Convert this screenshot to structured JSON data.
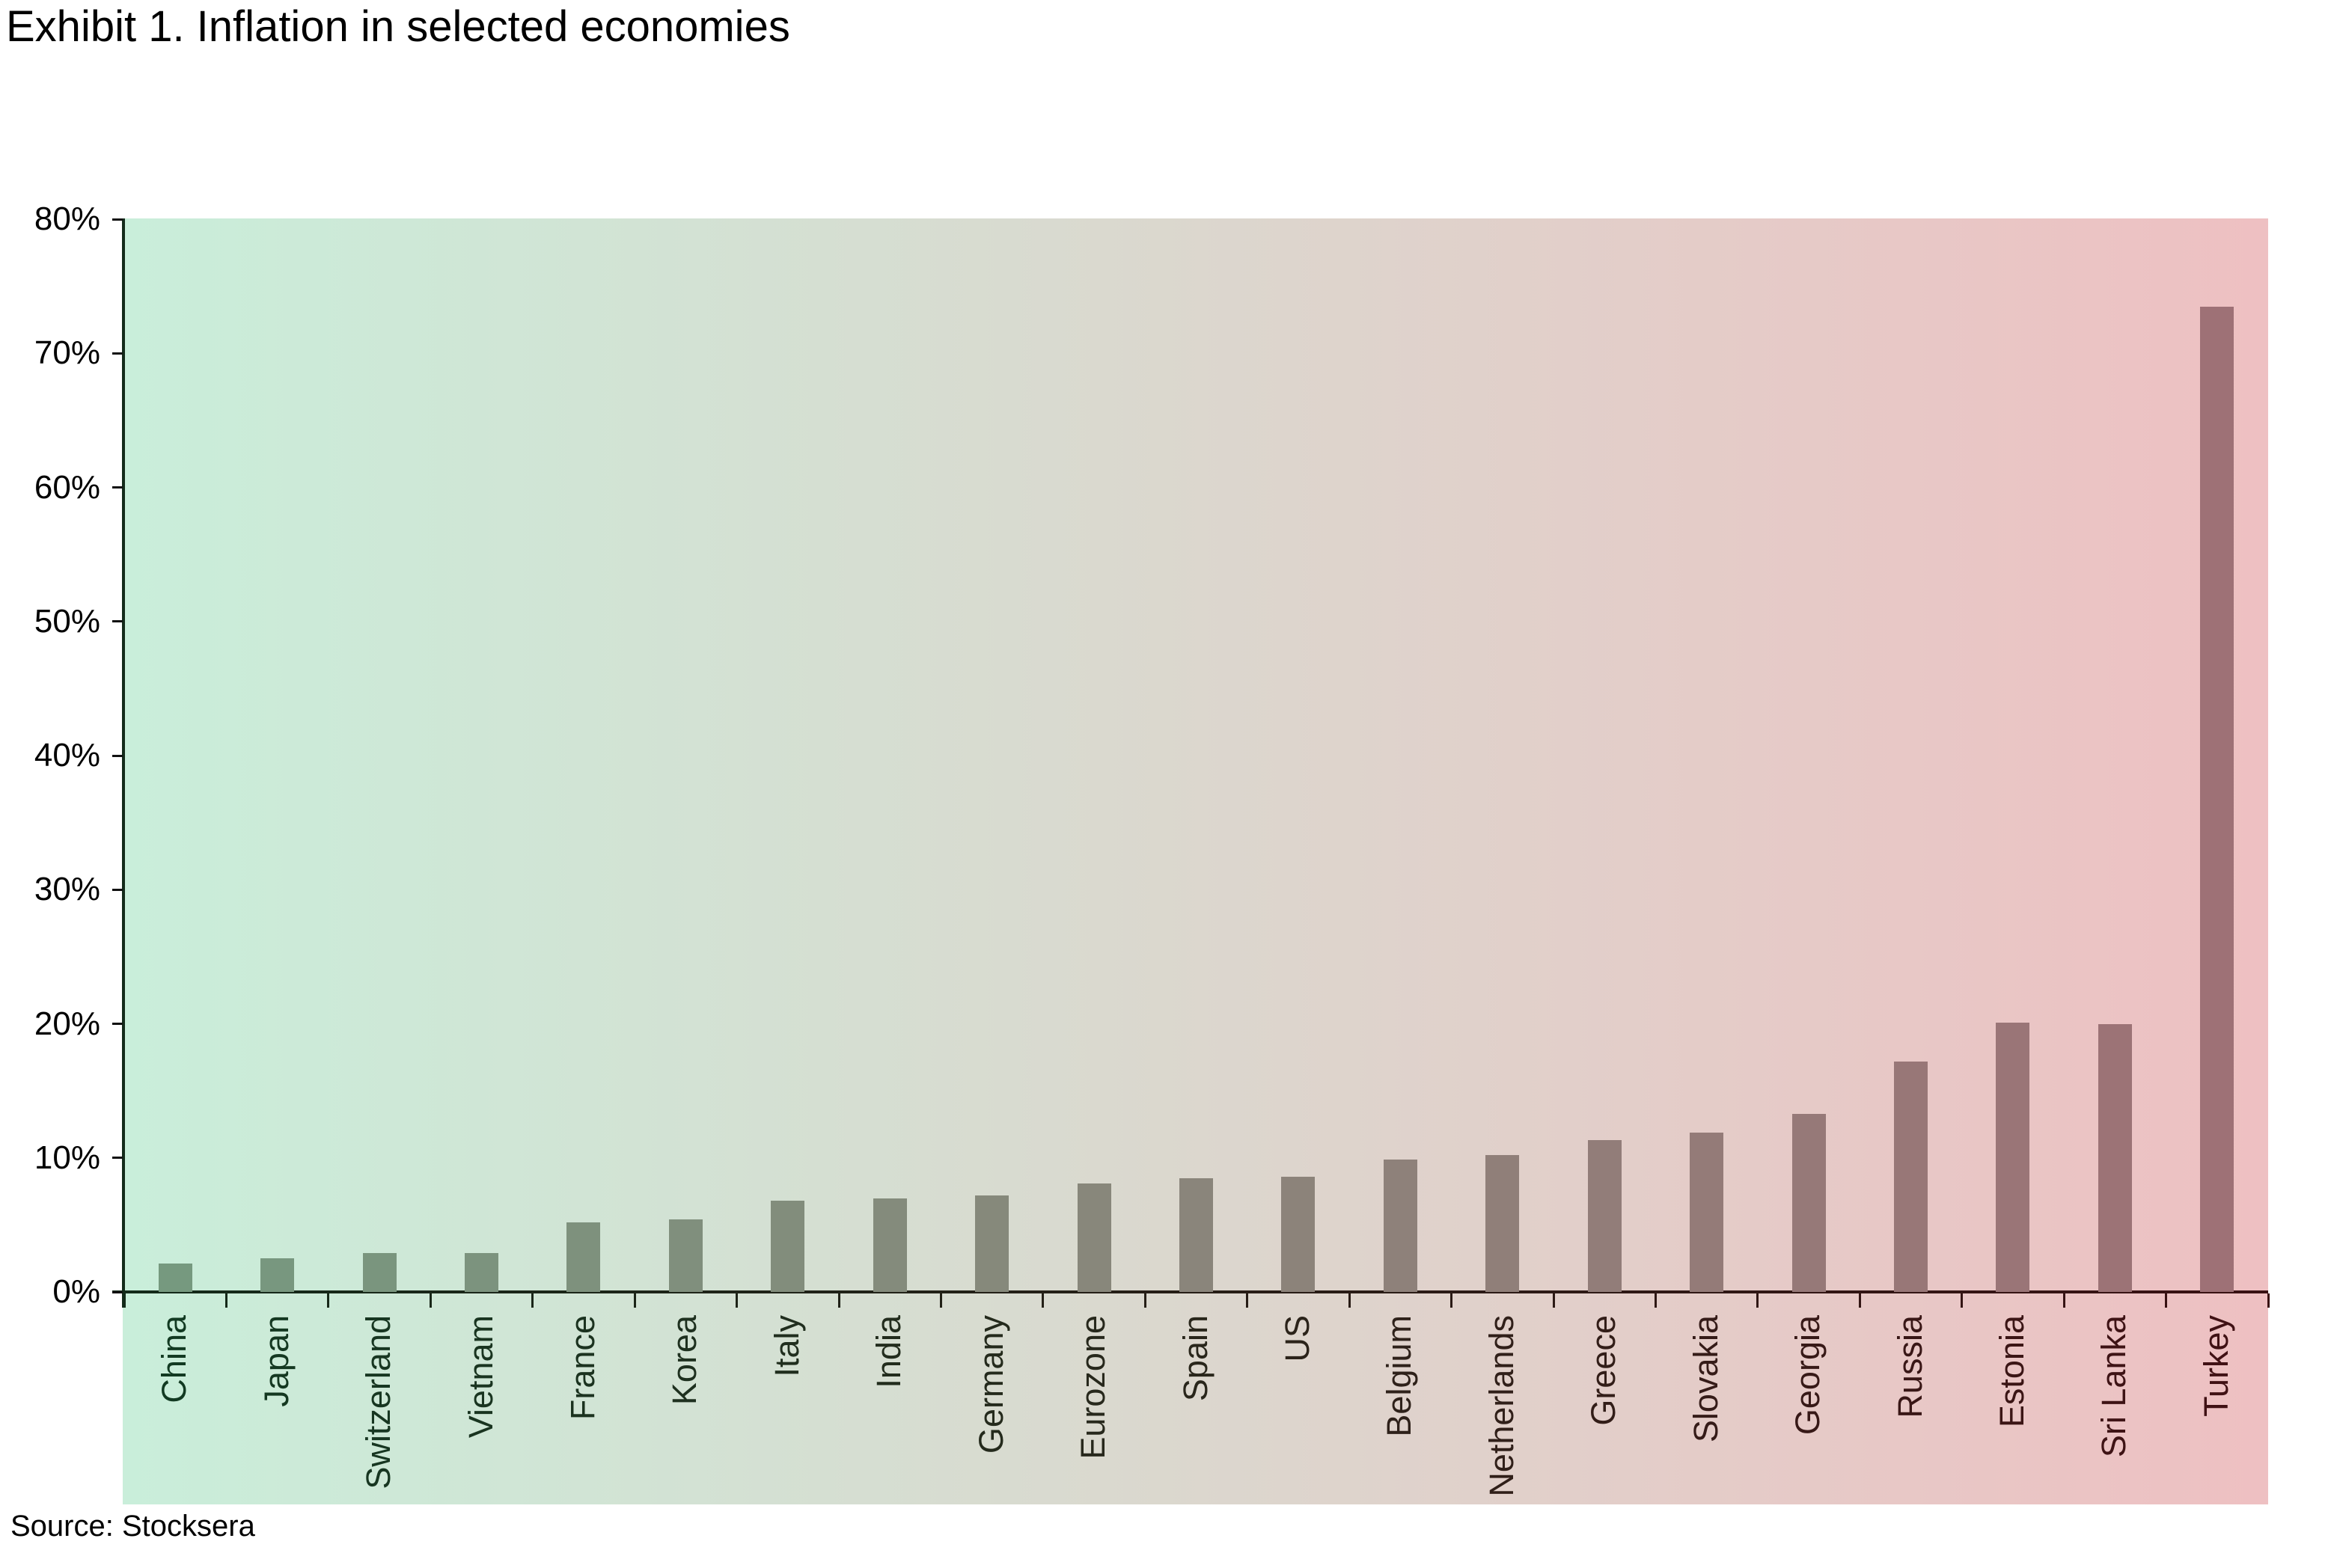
{
  "title": "Exhibit 1. Inflation in selected economies",
  "source": "Source: Stocksera",
  "y_axis": {
    "tick_labels": [
      "80%",
      "70%",
      "60%",
      "50%",
      "40%",
      "30%",
      "20%",
      "10%",
      "0%"
    ],
    "tick_values": [
      80,
      70,
      60,
      50,
      40,
      30,
      20,
      10,
      0
    ]
  },
  "chart_data": {
    "type": "bar",
    "title": "Exhibit 1. Inflation in selected economies",
    "xlabel": "",
    "ylabel": "",
    "ylim": [
      0,
      80
    ],
    "grid": false,
    "legend": "none",
    "value_suffix": "%",
    "categories": [
      "China",
      "Japan",
      "Switzerland",
      "Vietnam",
      "France",
      "Korea",
      "Italy",
      "India",
      "Germany",
      "Eurozone",
      "Spain",
      "US",
      "Belgium",
      "Netherlands",
      "Greece",
      "Slovakia",
      "Georgia",
      "Russia",
      "Estonia",
      "Sri Lanka",
      "Turkey"
    ],
    "values": [
      2.1,
      2.5,
      2.9,
      2.9,
      5.2,
      5.4,
      6.8,
      7.0,
      7.2,
      8.1,
      8.5,
      8.6,
      9.9,
      10.2,
      11.3,
      11.9,
      13.3,
      17.2,
      20.1,
      20.0,
      73.5
    ],
    "layout_hint": "background gradient green-to-red left-to-right; bars and category labels tinted along same gradient; y ticks every 10%"
  },
  "colors": {
    "background_left": "#c9eeda",
    "background_right": "#eec0c2",
    "bar_left": "#76997f",
    "bar_right": "#9e7176",
    "label_left": "#123a22",
    "label_right": "#401114",
    "axis_left": "#132b1a",
    "axis_right": "#3a1113",
    "tick_color": "#111111",
    "text_color": "#000000"
  }
}
